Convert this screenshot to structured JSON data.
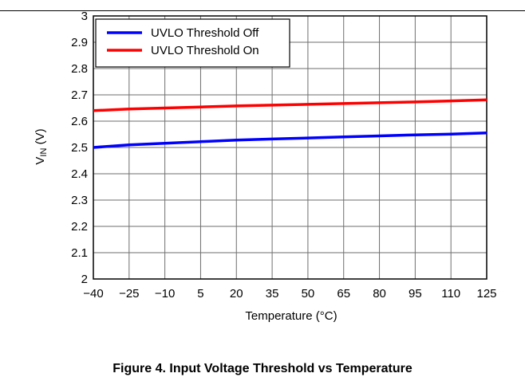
{
  "caption": "Figure 4. Input Voltage Threshold vs Temperature",
  "chart_data": {
    "type": "line",
    "xlabel": "Temperature (°C)",
    "ylabel_main": "V",
    "ylabel_sub": "IN",
    "ylabel_unit": " (V)",
    "xlim": [
      -40,
      125
    ],
    "ylim": [
      2.0,
      3.0
    ],
    "xticks": [
      -40,
      -25,
      -10,
      5,
      20,
      35,
      50,
      65,
      80,
      95,
      110,
      125
    ],
    "xtick_labels": [
      "−40",
      "−25",
      "−10",
      "5",
      "20",
      "35",
      "50",
      "65",
      "80",
      "95",
      "110",
      "125"
    ],
    "yticks": [
      2.0,
      2.1,
      2.2,
      2.3,
      2.4,
      2.5,
      2.6,
      2.7,
      2.8,
      2.9,
      3.0
    ],
    "ytick_labels": [
      "2",
      "2.1",
      "2.2",
      "2.3",
      "2.4",
      "2.5",
      "2.6",
      "2.7",
      "2.8",
      "2.9",
      "3"
    ],
    "grid": true,
    "legend_position": "top-left",
    "series": [
      {
        "name": "UVLO Threshold Off",
        "color": "#0000ff",
        "x": [
          -40,
          -25,
          -10,
          5,
          20,
          35,
          50,
          65,
          80,
          95,
          110,
          125
        ],
        "y": [
          2.5,
          2.51,
          2.516,
          2.522,
          2.528,
          2.532,
          2.536,
          2.54,
          2.544,
          2.548,
          2.551,
          2.555
        ]
      },
      {
        "name": "UVLO Threshold On",
        "color": "#ff0000",
        "x": [
          -40,
          -25,
          -10,
          5,
          20,
          35,
          50,
          65,
          80,
          95,
          110,
          125
        ],
        "y": [
          2.64,
          2.646,
          2.65,
          2.654,
          2.658,
          2.661,
          2.664,
          2.667,
          2.67,
          2.673,
          2.677,
          2.681
        ]
      }
    ]
  }
}
